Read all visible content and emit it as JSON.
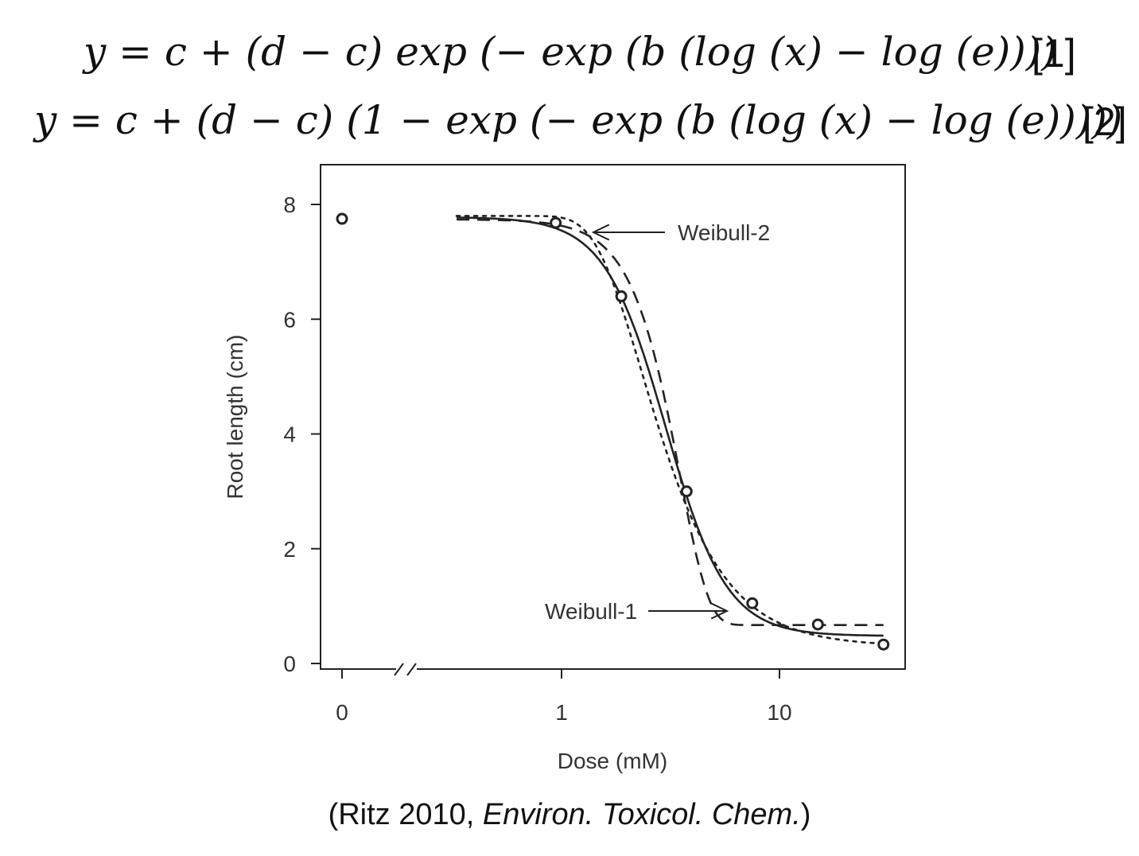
{
  "equations": [
    {
      "expr": "y = c + (d − c) exp (− exp (b (log (x) − log (e))))",
      "label": "[1]"
    },
    {
      "expr": "y = c + (d − c) (1 − exp (− exp (b (log (x) − log (e)))))",
      "label": "[2]"
    }
  ],
  "citation": {
    "prefix": "(Ritz 2010, ",
    "journal": "Environ. Toxicol. Chem.",
    "suffix": ")"
  },
  "chart_data": {
    "type": "line",
    "xlabel": "Dose (mM)",
    "ylabel": "Root length (cm)",
    "x_scale": "log with broken axis at 0",
    "x_ticks": [
      "0",
      "1",
      "10"
    ],
    "y_ticks": [
      "0",
      "2",
      "4",
      "6",
      "8"
    ],
    "ylim": [
      0,
      8.6
    ],
    "grid": false,
    "points": [
      {
        "x": 0,
        "y": 7.75
      },
      {
        "x": 0.94,
        "y": 7.68
      },
      {
        "x": 1.88,
        "y": 6.4
      },
      {
        "x": 3.75,
        "y": 3.0
      },
      {
        "x": 7.5,
        "y": 1.05
      },
      {
        "x": 15,
        "y": 0.68
      },
      {
        "x": 30,
        "y": 0.33
      }
    ],
    "series": [
      {
        "name": "",
        "style": "solid",
        "model": "log-logistic",
        "params": {
          "b": 3.1,
          "c": 0.48,
          "d": 7.78,
          "e": 3.0
        }
      },
      {
        "name": "Weibull-1",
        "style": "dashed",
        "model": "weibull1",
        "params": {
          "b": 3.3,
          "c": 0.67,
          "d": 7.74,
          "e": 3.5
        }
      },
      {
        "name": "Weibull-2",
        "style": "dotted",
        "model": "weibull2",
        "params": {
          "b": 2.0,
          "c": 0.3,
          "d": 7.8,
          "e": 2.35
        }
      }
    ],
    "annotations": [
      {
        "text": "Weibull-2",
        "points_to": "Weibull-2"
      },
      {
        "text": "Weibull-1",
        "points_to": "Weibull-1"
      }
    ]
  }
}
